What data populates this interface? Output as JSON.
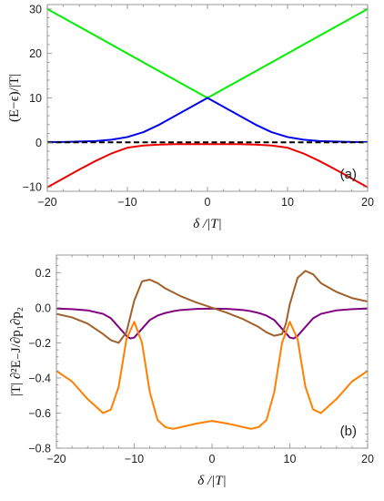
{
  "chart_data": [
    {
      "type": "line",
      "panel_label": "(a)",
      "xlabel": "δ /|T|",
      "ylabel": "(E−ϵ)/|T|",
      "xlim": [
        -20,
        20
      ],
      "ylim": [
        -11,
        31
      ],
      "xticks": [
        -20,
        -10,
        0,
        10,
        20
      ],
      "xtick_labels": [
        "−20",
        "−10",
        "0",
        "10",
        "20"
      ],
      "yticks": [
        -10,
        0,
        10,
        20,
        30
      ],
      "ytick_labels": [
        "−10",
        "0",
        "10",
        "20",
        "30"
      ],
      "grid": false,
      "series": [
        {
          "color": "#00ee00",
          "style": "solid",
          "x": [
            -20,
            -15,
            -10,
            -5,
            0,
            5,
            10,
            15,
            20
          ],
          "y": [
            30,
            25,
            20,
            15,
            10,
            15,
            20,
            25,
            30
          ]
        },
        {
          "color": "#0000ee",
          "style": "solid",
          "x": [
            -20,
            -18,
            -16,
            -14,
            -12,
            -10,
            -8,
            -6,
            -4,
            -2,
            0,
            2,
            4,
            6,
            8,
            10,
            12,
            14,
            16,
            18,
            20
          ],
          "y": [
            0.1,
            0.1,
            0.2,
            0.3,
            0.6,
            1.2,
            2.3,
            4.0,
            6.0,
            8.0,
            10.0,
            8.0,
            6.0,
            4.0,
            2.3,
            1.2,
            0.6,
            0.3,
            0.2,
            0.1,
            0.1
          ]
        },
        {
          "color": "#ee0000",
          "style": "solid",
          "x": [
            -20,
            -18,
            -16,
            -14,
            -12,
            -10,
            -8,
            -6,
            -4,
            -2,
            0,
            2,
            4,
            6,
            8,
            10,
            12,
            14,
            16,
            18,
            20
          ],
          "y": [
            -10.1,
            -8.1,
            -6.1,
            -4.2,
            -2.5,
            -1.2,
            -0.7,
            -0.5,
            -0.4,
            -0.4,
            -0.4,
            -0.4,
            -0.4,
            -0.5,
            -0.7,
            -1.2,
            -2.5,
            -4.2,
            -6.1,
            -8.1,
            -10.1
          ]
        },
        {
          "color": "#000000",
          "style": "dashed",
          "x": [
            -20,
            20
          ],
          "y": [
            0,
            0
          ]
        }
      ]
    },
    {
      "type": "line",
      "panel_label": "(b)",
      "xlabel": "δ /|T|",
      "ylabel": "|T| ∂²E₋J/∂p₁∂p₂",
      "xlim": [
        -20,
        20
      ],
      "ylim": [
        -0.8,
        0.3
      ],
      "xticks": [
        -20,
        -10,
        0,
        10,
        20
      ],
      "xtick_labels": [
        "−20",
        "−10",
        "0",
        "10",
        "20"
      ],
      "yticks": [
        -0.8,
        -0.6,
        -0.4,
        -0.2,
        0.0,
        0.2
      ],
      "ytick_labels": [
        "−0.8",
        "−0.6",
        "−0.4",
        "−0.2",
        "0.0",
        "0.2"
      ],
      "grid": false,
      "series": [
        {
          "color": "#800080",
          "style": "solid",
          "x": [
            -20,
            -18,
            -16,
            -14,
            -13,
            -12,
            -11,
            -10.5,
            -10,
            -9,
            -8,
            -7,
            -6,
            -5,
            -4,
            -2,
            0,
            2,
            4,
            5,
            6,
            7,
            8,
            9,
            10,
            10.5,
            11,
            12,
            13,
            14,
            16,
            18,
            20
          ],
          "y": [
            -0.005,
            -0.008,
            -0.015,
            -0.035,
            -0.06,
            -0.11,
            -0.16,
            -0.175,
            -0.17,
            -0.12,
            -0.07,
            -0.045,
            -0.03,
            -0.02,
            -0.013,
            -0.007,
            -0.005,
            -0.007,
            -0.013,
            -0.02,
            -0.03,
            -0.045,
            -0.07,
            -0.12,
            -0.17,
            -0.175,
            -0.16,
            -0.11,
            -0.06,
            -0.035,
            -0.015,
            -0.008,
            -0.005
          ]
        },
        {
          "color": "#ff8000",
          "style": "solid",
          "x": [
            -20,
            -18,
            -16,
            -14,
            -13,
            -12,
            -11,
            -10,
            -9,
            -8,
            -7,
            -6,
            -5,
            -4,
            -2,
            0,
            2,
            4,
            5,
            6,
            7,
            8,
            9,
            10,
            11,
            12,
            13,
            14,
            16,
            18,
            20
          ],
          "y": [
            -0.36,
            -0.42,
            -0.52,
            -0.6,
            -0.58,
            -0.45,
            -0.18,
            -0.08,
            -0.2,
            -0.48,
            -0.64,
            -0.68,
            -0.69,
            -0.68,
            -0.66,
            -0.645,
            -0.66,
            -0.68,
            -0.69,
            -0.68,
            -0.64,
            -0.48,
            -0.2,
            -0.08,
            -0.18,
            -0.45,
            -0.58,
            -0.6,
            -0.52,
            -0.42,
            -0.36
          ]
        },
        {
          "color": "#a0602a",
          "style": "solid",
          "x": [
            -20,
            -18,
            -16,
            -14,
            -13,
            -12,
            -11,
            -10,
            -9,
            -8,
            -7,
            -6,
            -4,
            -2,
            0,
            2,
            4,
            6,
            7,
            8,
            9,
            9.5,
            10,
            11,
            12,
            13,
            14,
            16,
            18,
            20
          ],
          "y": [
            -0.035,
            -0.055,
            -0.09,
            -0.15,
            -0.185,
            -0.2,
            -0.14,
            0.04,
            0.15,
            0.16,
            0.14,
            0.11,
            0.065,
            0.03,
            0.0,
            -0.03,
            -0.065,
            -0.11,
            -0.14,
            -0.16,
            -0.15,
            -0.09,
            0.02,
            0.17,
            0.21,
            0.19,
            0.14,
            0.09,
            0.055,
            0.035
          ]
        }
      ]
    }
  ]
}
